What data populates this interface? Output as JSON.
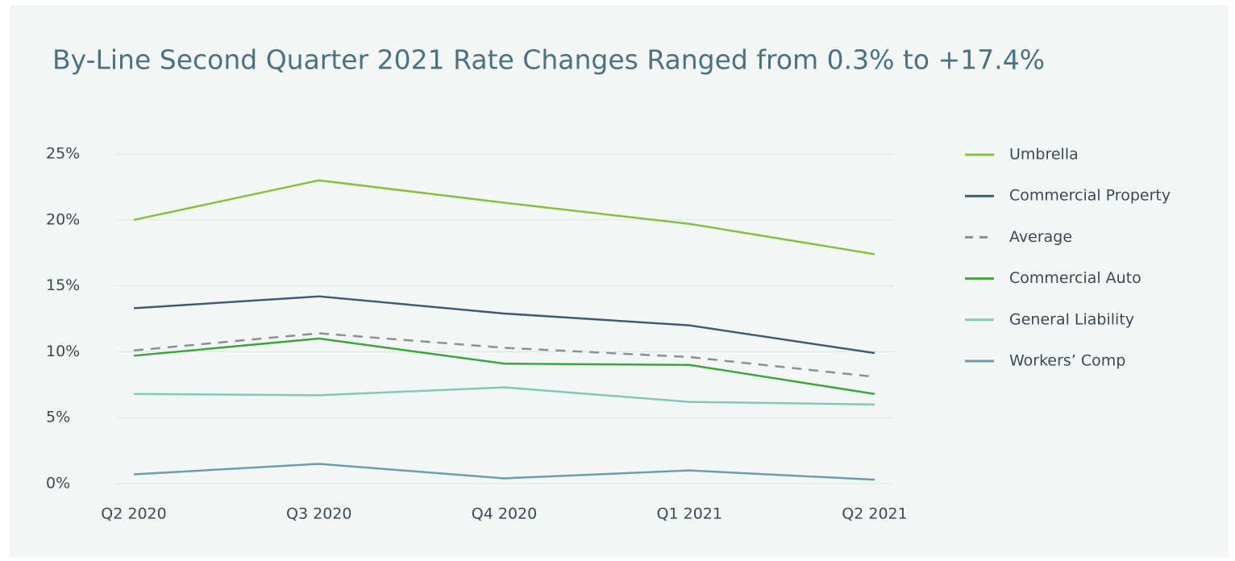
{
  "chart_data": {
    "type": "line",
    "title": "By-Line Second Quarter 2021 Rate Changes Ranged from 0.3% to +17.4%",
    "categories": [
      "Q2 2020",
      "Q3 2020",
      "Q4 2020",
      "Q1 2021",
      "Q2 2021"
    ],
    "series": [
      {
        "name": "Umbrella",
        "color": "#86c03f",
        "values": [
          20.0,
          23.0,
          21.3,
          19.7,
          17.4
        ]
      },
      {
        "name": "Commercial Property",
        "color": "#3f5c75",
        "values": [
          13.3,
          14.2,
          12.9,
          12.0,
          9.9
        ]
      },
      {
        "name": "Average",
        "color": "#8e8e98",
        "dashed": true,
        "values": [
          10.1,
          11.4,
          10.3,
          9.6,
          8.1
        ]
      },
      {
        "name": "Commercial Auto",
        "color": "#3ba63c",
        "values": [
          9.7,
          11.0,
          9.1,
          9.0,
          6.8
        ]
      },
      {
        "name": "General Liability",
        "color": "#7fcaba",
        "values": [
          6.8,
          6.7,
          7.3,
          6.2,
          6.0
        ]
      },
      {
        "name": "Workers’ Comp",
        "color": "#6b9db3",
        "values": [
          0.7,
          1.5,
          0.4,
          1.0,
          0.3
        ]
      }
    ],
    "ylim": [
      0,
      25
    ],
    "yticks": [
      {
        "value": 0,
        "label": "0%"
      },
      {
        "value": 5,
        "label": "5%"
      },
      {
        "value": 10,
        "label": "10%"
      },
      {
        "value": 15,
        "label": "15%"
      },
      {
        "value": 20,
        "label": "20%"
      },
      {
        "value": 25,
        "label": "25%"
      }
    ],
    "grid": true,
    "legend": "right"
  }
}
